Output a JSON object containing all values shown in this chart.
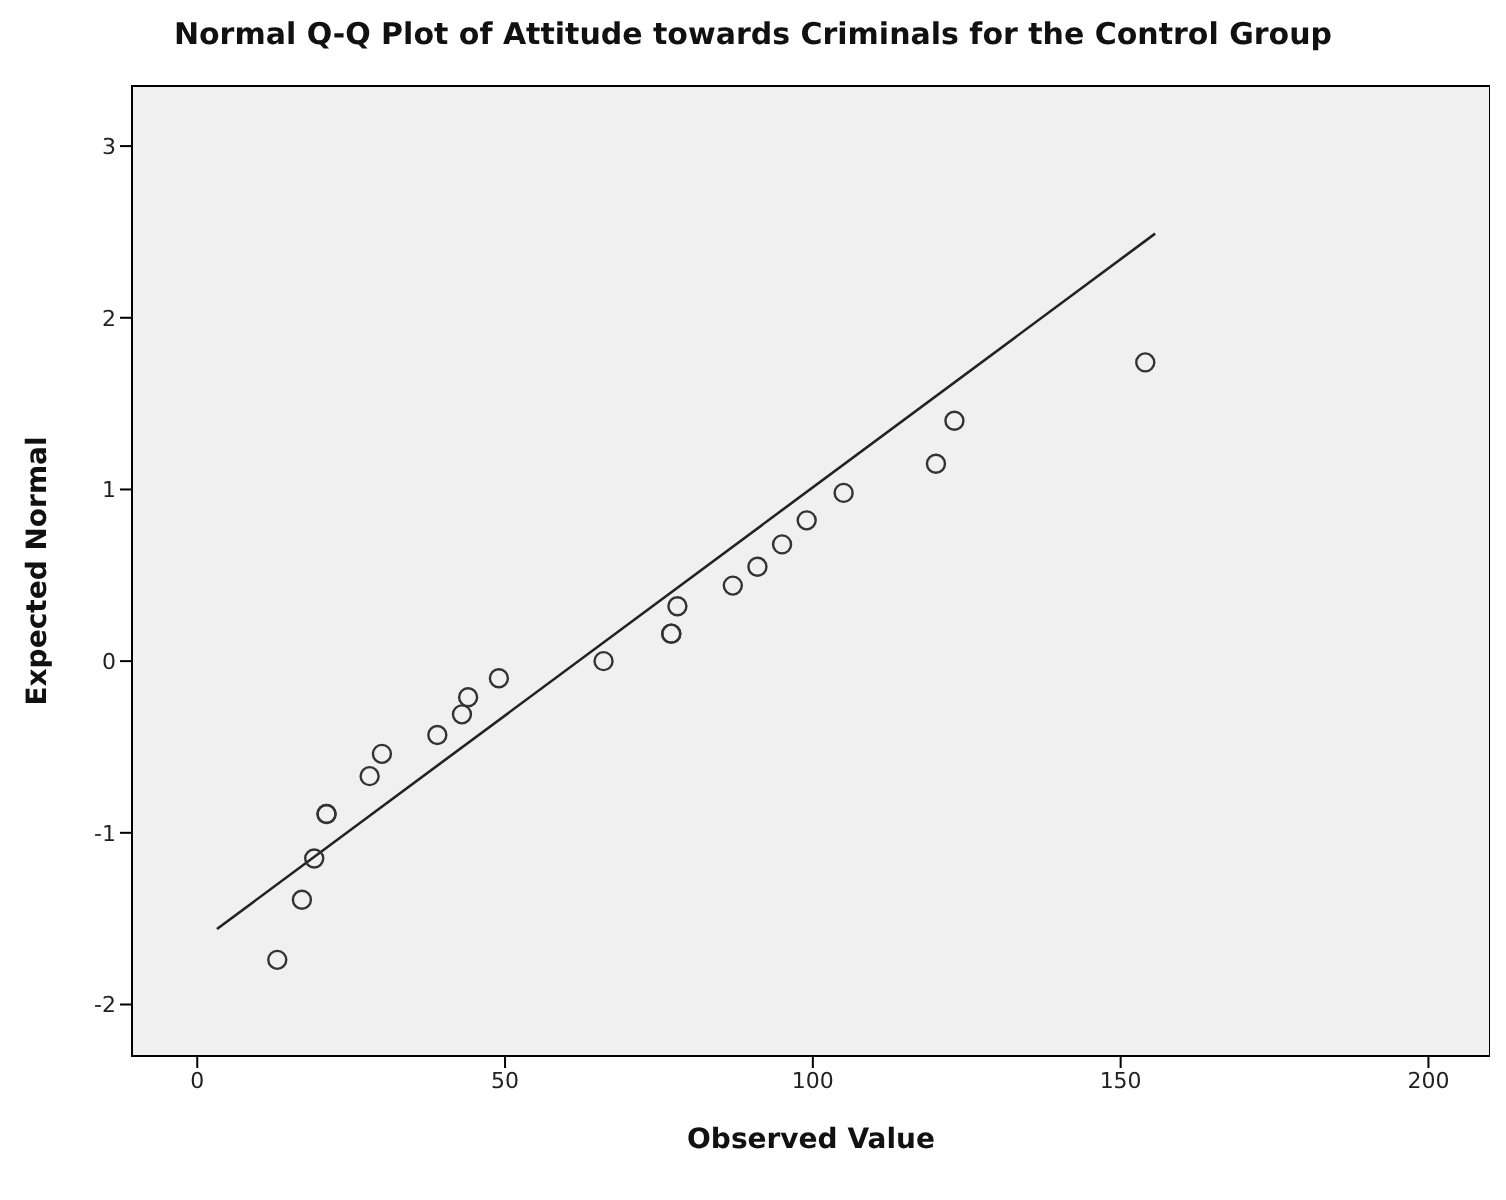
{
  "chart_data": {
    "type": "scatter",
    "title": "Normal Q-Q Plot of Attitude towards Criminals for the Control Group",
    "xlabel": "Observed Value",
    "ylabel": "Expected Normal",
    "xlim": [
      -10.6,
      210
    ],
    "xticks": [
      0,
      50,
      100,
      150,
      200
    ],
    "ylim": [
      -2.3,
      3.35
    ],
    "yticks": [
      -2,
      -1,
      0,
      1,
      2,
      3
    ],
    "series": [
      {
        "marker": "circle",
        "color": "#333333",
        "x": [
          13,
          17,
          19,
          21,
          21,
          28,
          30,
          39,
          43,
          44,
          49,
          66,
          77,
          77,
          78,
          87,
          91,
          95,
          99,
          105,
          120,
          123,
          154
        ],
        "values": [
          -1.74,
          -1.39,
          -1.15,
          -0.89,
          -0.89,
          -0.67,
          -0.54,
          -0.43,
          -0.31,
          -0.21,
          -0.1,
          0,
          0.16,
          0.16,
          0.32,
          0.44,
          0.55,
          0.68,
          0.82,
          0.98,
          1.15,
          1.4,
          1.74
        ]
      },
      {
        "type": "line",
        "color": "#222222",
        "x": [
          3.2,
          155.6
        ],
        "values": [
          -1.56,
          2.49
        ]
      }
    ]
  }
}
